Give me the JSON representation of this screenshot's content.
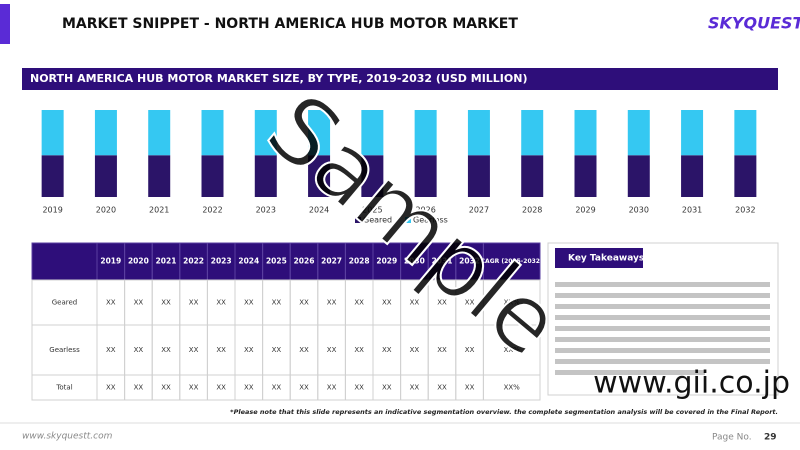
{
  "header": {
    "title": "MARKET SNIPPET - NORTH AMERICA HUB MOTOR MARKET",
    "logo": "SKYQUEST"
  },
  "chart_data": {
    "type": "bar",
    "stacked": true,
    "title": "NORTH AMERICA HUB MOTOR MARKET SIZE, BY TYPE, 2019-2032 (USD MILLION)",
    "categories": [
      "2019",
      "2020",
      "2021",
      "2022",
      "2023",
      "2024",
      "2025",
      "2026",
      "2027",
      "2028",
      "2029",
      "2030",
      "2031",
      "2032"
    ],
    "series": [
      {
        "name": "Geared",
        "color": "#2b1468",
        "values": [
          48,
          48,
          48,
          48,
          48,
          48,
          48,
          48,
          48,
          48,
          48,
          48,
          48,
          48
        ]
      },
      {
        "name": "Gearless",
        "color": "#35c8f2",
        "values": [
          52,
          52,
          52,
          52,
          52,
          52,
          52,
          52,
          52,
          52,
          52,
          52,
          52,
          52
        ]
      }
    ],
    "ylim": [
      0,
      100
    ],
    "legend": "bottom"
  },
  "table": {
    "header": [
      "",
      "2019",
      "2020",
      "2021",
      "2022",
      "2023",
      "2024",
      "2025",
      "2026",
      "2027",
      "2028",
      "2029",
      "2030",
      "2031",
      "2032",
      "CAGR (2025-2032)"
    ],
    "rows": [
      [
        "Geared",
        "XX",
        "XX",
        "XX",
        "XX",
        "XX",
        "XX",
        "XX",
        "XX",
        "XX",
        "XX",
        "XX",
        "XX",
        "XX",
        "XX",
        "XX%"
      ],
      [
        "Gearless",
        "XX",
        "XX",
        "XX",
        "XX",
        "XX",
        "XX",
        "XX",
        "XX",
        "XX",
        "XX",
        "XX",
        "XX",
        "XX",
        "XX",
        "XX%"
      ],
      [
        "Total",
        "XX",
        "XX",
        "XX",
        "XX",
        "XX",
        "XX",
        "XX",
        "XX",
        "XX",
        "XX",
        "XX",
        "XX",
        "XX",
        "XX",
        "XX%"
      ]
    ]
  },
  "takeaways": {
    "title": "Key Takeaways"
  },
  "footnote": "*Please note that this slide represents an indicative segmentation overview. the complete segmentation analysis will be covered in the Final Report.",
  "footer": {
    "url": "www.skyquestt.com",
    "page_label": "Page No.",
    "page": "29"
  },
  "watermark": {
    "sample": "Sample",
    "site": "www.gii.co.jp"
  }
}
